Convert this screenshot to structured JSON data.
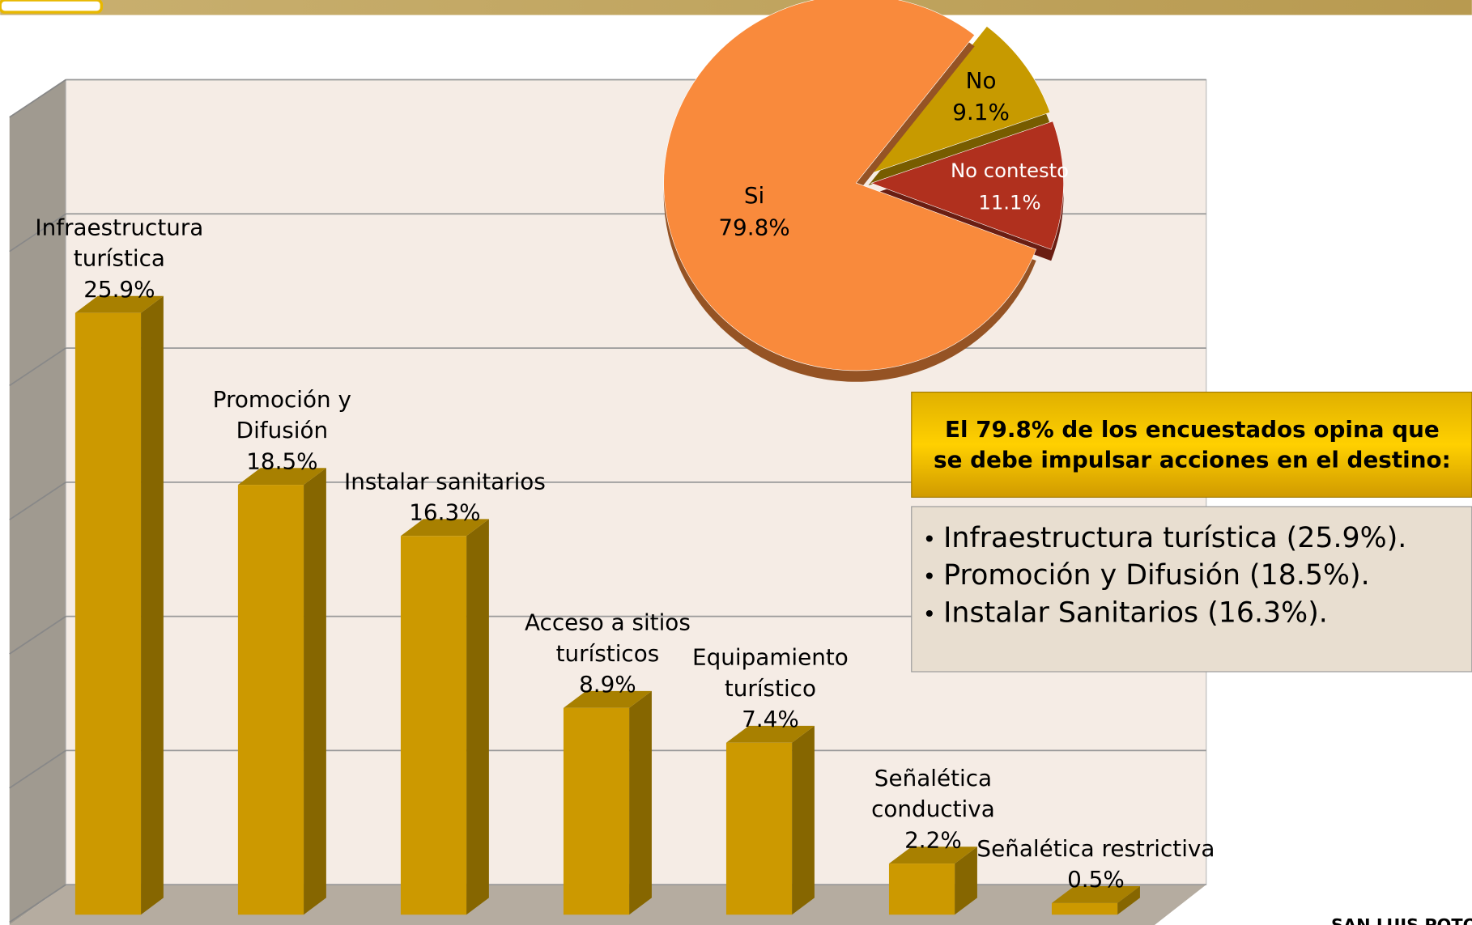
{
  "chart_data": [
    {
      "type": "bar",
      "categories": [
        [
          "Infraestructura",
          "turística"
        ],
        [
          "Promoción y",
          "Difusión"
        ],
        [
          "Instalar sanitarios"
        ],
        [
          "Acceso a sitios",
          "turísticos"
        ],
        [
          "Equipamiento",
          "turístico"
        ],
        [
          "Señalética",
          "conductiva"
        ],
        [
          "Señalética restrictiva"
        ]
      ],
      "values": [
        25.9,
        18.5,
        16.3,
        8.9,
        7.4,
        2.2,
        0.5
      ],
      "value_labels": [
        "25.9%",
        "18.5%",
        "16.3%",
        "8.9%",
        "7.4%",
        "2.2%",
        "0.5%"
      ],
      "color": "#cc9900",
      "ylim": [
        0,
        30
      ],
      "yticks": [
        0,
        5,
        10,
        15,
        20,
        25,
        30
      ],
      "grid": true
    },
    {
      "type": "pie",
      "categories": [
        "Si",
        "No",
        "No contesto"
      ],
      "values": [
        79.8,
        9.1,
        11.1
      ],
      "value_labels": [
        "79.8%",
        "9.1%",
        "11.1%"
      ],
      "colors": [
        "#f98a3c",
        "#c79a00",
        "#b0301e"
      ]
    }
  ],
  "callout": {
    "title": [
      "El 79.8% de los encuestados opina que",
      "se debe impulsar acciones en el destino:"
    ],
    "items": [
      "Infraestructura turística (25.9%).",
      "Promoción y Difusión (18.5%).",
      "Instalar Sanitarios (16.3%)."
    ]
  },
  "footer": "SAN LUIS POTO"
}
